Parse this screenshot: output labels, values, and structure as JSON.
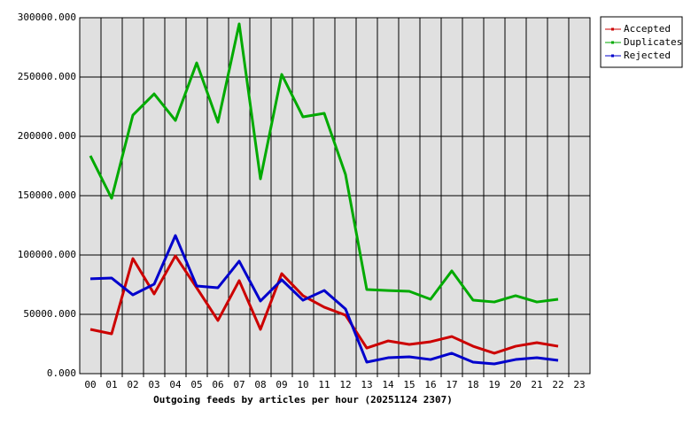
{
  "chart_data": {
    "type": "line",
    "xlabel": "Outgoing feeds by articles per hour (20251124 2307)",
    "categories": [
      "00",
      "01",
      "02",
      "03",
      "04",
      "05",
      "06",
      "07",
      "08",
      "09",
      "10",
      "11",
      "12",
      "13",
      "14",
      "15",
      "16",
      "17",
      "18",
      "19",
      "20",
      "21",
      "22",
      "23"
    ],
    "series": [
      {
        "name": "Accepted",
        "color": "#cc0000",
        "values": [
          37300,
          33600,
          97000,
          67200,
          99300,
          72400,
          44800,
          78400,
          37300,
          84300,
          65700,
          56000,
          49300,
          21600,
          27600,
          24600,
          26900,
          31300,
          23100,
          17200,
          23100,
          26100,
          23100,
          null
        ]
      },
      {
        "name": "Duplicates",
        "color": "#00aa00",
        "values": [
          183600,
          147800,
          217900,
          235800,
          213400,
          261900,
          211900,
          294800,
          164200,
          252200,
          216400,
          219400,
          167900,
          70900,
          70100,
          69400,
          62700,
          86600,
          61900,
          60400,
          65700,
          60400,
          62700,
          null
        ]
      },
      {
        "name": "Rejected",
        "color": "#0000cc",
        "values": [
          79900,
          80600,
          66400,
          75400,
          116400,
          73900,
          72400,
          94800,
          61200,
          79100,
          61900,
          70100,
          54500,
          9700,
          13400,
          14200,
          11900,
          17200,
          9700,
          8200,
          11900,
          13400,
          11200,
          null
        ]
      }
    ],
    "ylim": [
      0,
      300000
    ],
    "yticks": [
      {
        "value": 0,
        "label": "0.000"
      },
      {
        "value": 50000,
        "label": "50000.000"
      },
      {
        "value": 100000,
        "label": "100000.000"
      },
      {
        "value": 150000,
        "label": "150000.000"
      },
      {
        "value": 200000,
        "label": "200000.000"
      },
      {
        "value": 250000,
        "label": "250000.000"
      },
      {
        "value": 300000,
        "label": "300000.000"
      }
    ],
    "grid": true,
    "legend": "top-right"
  }
}
